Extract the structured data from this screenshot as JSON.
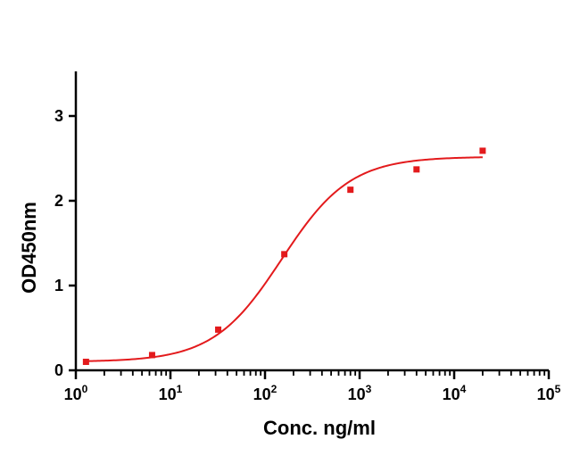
{
  "chart_data": {
    "type": "scatter",
    "title": "",
    "xlabel": "Conc. ng/ml",
    "ylabel": "OD450nm",
    "x_scale": "log10",
    "xlim": [
      1,
      100000
    ],
    "ylim": [
      0,
      3.5
    ],
    "x_ticks": [
      {
        "base": "10",
        "exp": "0"
      },
      {
        "base": "10",
        "exp": "1"
      },
      {
        "base": "10",
        "exp": "2"
      },
      {
        "base": "10",
        "exp": "3"
      },
      {
        "base": "10",
        "exp": "4"
      },
      {
        "base": "10",
        "exp": "5"
      }
    ],
    "y_ticks": [
      "0",
      "1",
      "2",
      "3"
    ],
    "grid": false,
    "legend": "none",
    "series": [
      {
        "color": "#e31a1c",
        "points": [
          {
            "x": 1.28,
            "y": 0.1
          },
          {
            "x": 6.4,
            "y": 0.18
          },
          {
            "x": 32,
            "y": 0.48
          },
          {
            "x": 160,
            "y": 1.37
          },
          {
            "x": 800,
            "y": 2.13
          },
          {
            "x": 4000,
            "y": 2.37
          },
          {
            "x": 20000,
            "y": 2.59
          }
        ],
        "fit": {
          "model": "4PL",
          "bottom": 0.1,
          "top": 2.52,
          "ec50": 150,
          "hill": 1.2
        }
      }
    ]
  }
}
